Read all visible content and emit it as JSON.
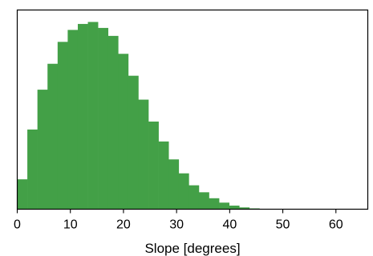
{
  "chart_data": {
    "type": "bar",
    "histogram": true,
    "bin_width": 1.9,
    "bin_start": 0,
    "bins": [
      [
        0.0,
        1.9,
        0.15
      ],
      [
        1.9,
        3.8,
        0.4
      ],
      [
        3.8,
        5.7,
        0.6
      ],
      [
        5.7,
        7.6,
        0.73
      ],
      [
        7.6,
        9.5,
        0.84
      ],
      [
        9.5,
        11.4,
        0.9
      ],
      [
        11.4,
        13.3,
        0.93
      ],
      [
        13.3,
        15.2,
        0.94
      ],
      [
        15.2,
        17.1,
        0.91
      ],
      [
        17.1,
        19.0,
        0.87
      ],
      [
        19.0,
        20.9,
        0.78
      ],
      [
        20.9,
        22.8,
        0.67
      ],
      [
        22.8,
        24.7,
        0.55
      ],
      [
        24.7,
        26.6,
        0.44
      ],
      [
        26.6,
        28.5,
        0.34
      ],
      [
        28.5,
        30.4,
        0.25
      ],
      [
        30.4,
        32.3,
        0.18
      ],
      [
        32.3,
        34.2,
        0.12
      ],
      [
        34.2,
        36.1,
        0.085
      ],
      [
        36.1,
        38.0,
        0.055
      ],
      [
        38.0,
        39.9,
        0.033
      ],
      [
        39.9,
        41.8,
        0.018
      ],
      [
        41.8,
        43.7,
        0.009
      ],
      [
        43.7,
        45.6,
        0.004
      ],
      [
        45.6,
        47.5,
        0.002
      ],
      [
        47.5,
        49.4,
        0.001
      ]
    ],
    "xlabel": "Slope [degrees]",
    "ylabel": "",
    "title": "",
    "xlim": [
      0,
      66
    ],
    "ylim": [
      0,
      1
    ],
    "xticks": [
      0,
      10,
      20,
      30,
      40,
      50,
      60
    ],
    "yticks": [],
    "bar_color": "#43a047",
    "grid": false,
    "legend": false
  }
}
